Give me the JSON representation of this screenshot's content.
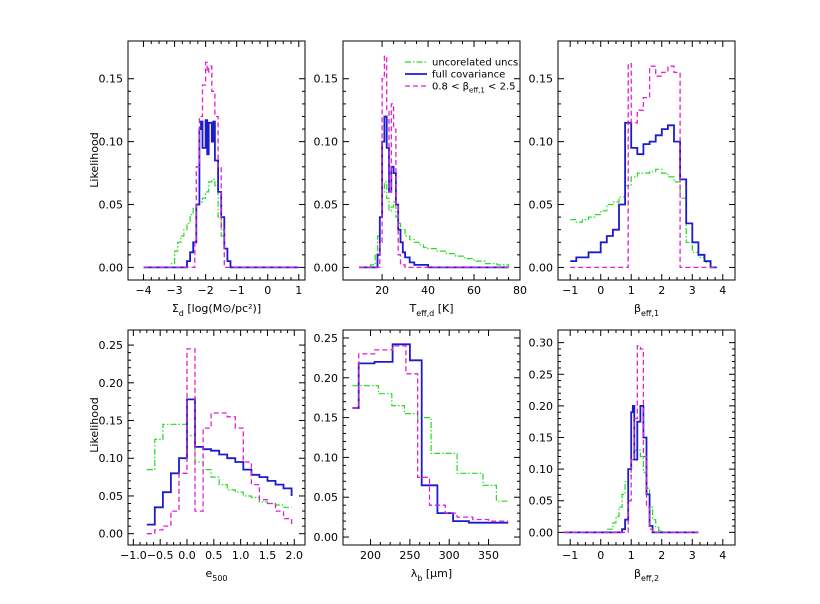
{
  "figure": {
    "ylabel": "Likelihood"
  },
  "series_styles": [
    {
      "key": "uncorr",
      "name": "uncorelated uncs.",
      "color": "#22dd22",
      "dash": "6,2,1.5,2",
      "width": 1.2
    },
    {
      "key": "full",
      "name": "full covariance",
      "color": "#1c1ccc",
      "dash": "",
      "width": 1.8
    },
    {
      "key": "beta",
      "name": "0.8 < β_eff,1 < 2.5",
      "color": "#e020d0",
      "dash": "5,3",
      "width": 1.3
    }
  ],
  "legend": {
    "items": [
      "uncorelated uncs.",
      "full covariance",
      "0.8 < βeff,1 < 2.5"
    ],
    "placement": "top-right of panel 2"
  },
  "chart_data": [
    {
      "type": "line",
      "panel": 1,
      "xlabel": "Σd [log(M⊙/pc²)]",
      "ylabel": "Likelihood",
      "xlim": [
        -4.5,
        1.2
      ],
      "ylim": [
        -0.01,
        0.18
      ],
      "xticks": [
        -4,
        -3,
        -2,
        -1,
        0,
        1
      ],
      "yticks": [
        0.0,
        0.05,
        0.1,
        0.15
      ],
      "tick_format": 2,
      "series": [
        {
          "key": "uncorr",
          "x": [
            -4.0,
            -3.2,
            -3.1,
            -3.0,
            -2.9,
            -2.8,
            -2.7,
            -2.6,
            -2.5,
            -2.4,
            -2.3,
            -2.2,
            -2.1,
            -2.0,
            -1.9,
            -1.8,
            -1.7,
            -1.6,
            -1.5,
            -1.4,
            -1.3,
            -1.2,
            1.0
          ],
          "y": [
            0.0,
            0.0,
            0.003,
            0.013,
            0.02,
            0.025,
            0.03,
            0.035,
            0.042,
            0.047,
            0.05,
            0.052,
            0.055,
            0.06,
            0.068,
            0.07,
            0.065,
            0.04,
            0.025,
            0.015,
            0.005,
            0.0,
            0.0
          ]
        },
        {
          "key": "full",
          "x": [
            -4.0,
            -2.7,
            -2.6,
            -2.5,
            -2.4,
            -2.3,
            -2.2,
            -2.15,
            -2.1,
            -2.0,
            -1.95,
            -1.9,
            -1.8,
            -1.75,
            -1.7,
            -1.6,
            -1.5,
            -1.4,
            -1.3,
            -1.2,
            1.0
          ],
          "y": [
            0.0,
            0.0,
            0.005,
            0.012,
            0.02,
            0.05,
            0.11,
            0.116,
            0.095,
            0.117,
            0.09,
            0.115,
            0.1,
            0.116,
            0.085,
            0.06,
            0.04,
            0.015,
            0.005,
            0.0,
            0.0
          ]
        },
        {
          "key": "beta",
          "x": [
            -4.0,
            -2.4,
            -2.35,
            -2.3,
            -2.2,
            -2.1,
            -2.0,
            -1.95,
            -1.9,
            -1.8,
            -1.7,
            -1.6,
            -1.5,
            -1.4,
            1.0
          ],
          "y": [
            0.0,
            0.0,
            0.02,
            0.08,
            0.12,
            0.145,
            0.163,
            0.155,
            0.16,
            0.14,
            0.12,
            0.08,
            0.03,
            0.0,
            0.0
          ]
        }
      ]
    },
    {
      "type": "line",
      "panel": 2,
      "xlabel": "Teff,d [K]",
      "xlim": [
        3,
        80
      ],
      "ylim": [
        -0.01,
        0.18
      ],
      "xticks": [
        20,
        40,
        60,
        80
      ],
      "yticks": [
        0.0,
        0.05,
        0.1,
        0.15
      ],
      "tick_format": 2,
      "series": [
        {
          "key": "uncorr",
          "x": [
            10,
            15,
            17,
            18,
            19,
            20,
            21,
            22,
            23,
            24,
            25,
            26,
            27,
            28,
            30,
            32,
            34,
            36,
            38,
            40,
            44,
            48,
            52,
            56,
            60,
            65,
            70,
            75
          ],
          "y": [
            0.0,
            0.002,
            0.01,
            0.025,
            0.04,
            0.06,
            0.068,
            0.055,
            0.045,
            0.048,
            0.052,
            0.04,
            0.035,
            0.03,
            0.025,
            0.022,
            0.02,
            0.018,
            0.016,
            0.015,
            0.013,
            0.011,
            0.009,
            0.007,
            0.005,
            0.003,
            0.002,
            0.0
          ]
        },
        {
          "key": "full",
          "x": [
            10,
            17,
            18,
            19,
            20,
            21,
            22,
            23,
            24,
            25,
            26,
            27,
            28,
            29,
            30,
            32,
            34,
            40,
            75
          ],
          "y": [
            0.0,
            0.0,
            0.01,
            0.04,
            0.1,
            0.12,
            0.095,
            0.06,
            0.08,
            0.075,
            0.05,
            0.03,
            0.02,
            0.012,
            0.008,
            0.004,
            0.002,
            0.0,
            0.0
          ]
        },
        {
          "key": "beta",
          "x": [
            10,
            18,
            19,
            20,
            21,
            22,
            23,
            24,
            25,
            26,
            27,
            28,
            30,
            75
          ],
          "y": [
            0.0,
            0.0,
            0.02,
            0.15,
            0.168,
            0.125,
            0.06,
            0.13,
            0.11,
            0.05,
            0.01,
            0.002,
            0.0,
            0.0
          ]
        }
      ]
    },
    {
      "type": "line",
      "panel": 3,
      "xlabel": "βeff,1",
      "xlim": [
        -1.4,
        4.4
      ],
      "ylim": [
        -0.01,
        0.18
      ],
      "xticks": [
        -1,
        0,
        1,
        2,
        3,
        4
      ],
      "yticks": [
        0.0,
        0.05,
        0.1,
        0.15
      ],
      "tick_format": 2,
      "series": [
        {
          "key": "uncorr",
          "x": [
            -1.0,
            -0.8,
            -0.6,
            -0.4,
            -0.2,
            0.0,
            0.2,
            0.4,
            0.6,
            0.8,
            1.0,
            1.2,
            1.4,
            1.6,
            1.8,
            2.0,
            2.2,
            2.4,
            2.6,
            2.8,
            3.0,
            3.2,
            3.4,
            3.6,
            3.8
          ],
          "y": [
            0.038,
            0.036,
            0.038,
            0.04,
            0.042,
            0.045,
            0.05,
            0.052,
            0.056,
            0.065,
            0.072,
            0.075,
            0.075,
            0.076,
            0.078,
            0.075,
            0.072,
            0.068,
            0.055,
            0.02,
            0.012,
            0.008,
            0.004,
            0.0,
            0.0
          ]
        },
        {
          "key": "full",
          "x": [
            -1.0,
            -0.8,
            -0.6,
            -0.4,
            -0.2,
            0.0,
            0.2,
            0.4,
            0.6,
            0.8,
            1.0,
            1.2,
            1.4,
            1.6,
            1.8,
            2.0,
            2.2,
            2.4,
            2.6,
            2.8,
            3.0,
            3.2,
            3.4,
            3.6,
            3.8
          ],
          "y": [
            0.005,
            0.008,
            0.008,
            0.012,
            0.012,
            0.02,
            0.025,
            0.03,
            0.05,
            0.115,
            0.095,
            0.09,
            0.098,
            0.1,
            0.105,
            0.11,
            0.113,
            0.1,
            0.07,
            0.035,
            0.02,
            0.01,
            0.005,
            0.0,
            0.0
          ]
        },
        {
          "key": "beta",
          "x": [
            -1.0,
            0.8,
            0.9,
            1.0,
            1.2,
            1.4,
            1.6,
            1.8,
            2.0,
            2.2,
            2.4,
            2.6,
            2.7,
            3.8
          ],
          "y": [
            0.0,
            0.0,
            0.162,
            0.115,
            0.125,
            0.135,
            0.16,
            0.152,
            0.155,
            0.16,
            0.155,
            0.0,
            0.0,
            0.0
          ]
        }
      ]
    },
    {
      "type": "line",
      "panel": 4,
      "xlabel": "e500",
      "xlim": [
        -1.1,
        2.2
      ],
      "ylim": [
        -0.015,
        0.27
      ],
      "xticks": [
        -1.0,
        -0.5,
        0.0,
        0.5,
        1.0,
        1.5,
        2.0
      ],
      "yticks": [
        0.0,
        0.05,
        0.1,
        0.15,
        0.2,
        0.25
      ],
      "tick_format": 2,
      "xtick_format": 1,
      "series": [
        {
          "key": "uncorr",
          "x": [
            -0.75,
            -0.6,
            -0.45,
            -0.3,
            -0.15,
            0.0,
            0.15,
            0.3,
            0.45,
            0.6,
            0.75,
            0.9,
            1.05,
            1.2,
            1.35,
            1.5,
            1.65,
            1.8,
            1.95
          ],
          "y": [
            0.085,
            0.125,
            0.145,
            0.145,
            0.145,
            0.13,
            0.095,
            0.085,
            0.075,
            0.065,
            0.058,
            0.055,
            0.05,
            0.048,
            0.042,
            0.04,
            0.038,
            0.035,
            0.035
          ]
        },
        {
          "key": "full",
          "x": [
            -0.75,
            -0.6,
            -0.45,
            -0.3,
            -0.15,
            0.0,
            0.15,
            0.3,
            0.45,
            0.6,
            0.75,
            0.9,
            1.05,
            1.2,
            1.35,
            1.5,
            1.65,
            1.8,
            1.95
          ],
          "y": [
            0.012,
            0.035,
            0.055,
            0.08,
            0.1,
            0.178,
            0.115,
            0.112,
            0.11,
            0.105,
            0.1,
            0.095,
            0.085,
            0.078,
            0.075,
            0.07,
            0.065,
            0.06,
            0.05
          ]
        },
        {
          "key": "beta",
          "x": [
            -0.75,
            -0.6,
            -0.45,
            -0.3,
            -0.15,
            0.0,
            0.15,
            0.3,
            0.45,
            0.6,
            0.75,
            0.9,
            1.05,
            1.2,
            1.35,
            1.5,
            1.65,
            1.8,
            1.95
          ],
          "y": [
            0.0,
            0.005,
            0.01,
            0.03,
            0.08,
            0.245,
            0.03,
            0.14,
            0.16,
            0.16,
            0.155,
            0.14,
            0.095,
            0.065,
            0.045,
            0.04,
            0.03,
            0.02,
            0.01
          ]
        }
      ]
    },
    {
      "type": "line",
      "panel": 5,
      "xlabel": "λb [μm]",
      "xlim": [
        165,
        390
      ],
      "ylim": [
        -0.01,
        0.26
      ],
      "xticks": [
        200,
        250,
        300,
        350
      ],
      "yticks": [
        0.0,
        0.05,
        0.1,
        0.15,
        0.2,
        0.25
      ],
      "tick_format": 2,
      "xtick_format": 0,
      "series": [
        {
          "key": "uncorr",
          "x": [
            177,
            193,
            210,
            227,
            243,
            260,
            277,
            293,
            310,
            327,
            343,
            360,
            375
          ],
          "y": [
            0.19,
            0.19,
            0.18,
            0.165,
            0.155,
            0.15,
            0.105,
            0.105,
            0.08,
            0.08,
            0.065,
            0.045,
            0.045
          ]
        },
        {
          "key": "full",
          "x": [
            177,
            185,
            205,
            228,
            250,
            265,
            285,
            305,
            325,
            345,
            360,
            375
          ],
          "y": [
            0.162,
            0.218,
            0.22,
            0.242,
            0.222,
            0.065,
            0.03,
            0.02,
            0.018,
            0.018,
            0.018,
            0.018
          ]
        },
        {
          "key": "beta",
          "x": [
            177,
            185,
            205,
            228,
            245,
            260,
            275,
            295,
            310,
            330,
            350,
            375
          ],
          "y": [
            0.162,
            0.23,
            0.235,
            0.24,
            0.205,
            0.075,
            0.04,
            0.03,
            0.025,
            0.022,
            0.02,
            0.02
          ]
        }
      ]
    },
    {
      "type": "line",
      "panel": 6,
      "xlabel": "βeff,2",
      "xlim": [
        -1.4,
        4.4
      ],
      "ylim": [
        -0.02,
        0.32
      ],
      "xticks": [
        -1,
        0,
        1,
        2,
        3,
        4
      ],
      "yticks": [
        0.0,
        0.05,
        0.1,
        0.15,
        0.2,
        0.25,
        0.3
      ],
      "tick_format": 2,
      "series": [
        {
          "key": "uncorr",
          "x": [
            -1.2,
            0.0,
            0.2,
            0.4,
            0.5,
            0.6,
            0.7,
            0.8,
            0.9,
            1.0,
            1.1,
            1.2,
            1.3,
            1.4,
            1.5,
            1.6,
            1.7,
            1.8,
            1.9,
            2.0,
            2.2,
            3.2
          ],
          "y": [
            0.0,
            0.0,
            0.005,
            0.015,
            0.025,
            0.04,
            0.06,
            0.08,
            0.09,
            0.115,
            0.13,
            0.13,
            0.12,
            0.095,
            0.07,
            0.04,
            0.02,
            0.008,
            0.003,
            0.0,
            0.0,
            0.0
          ]
        },
        {
          "key": "full",
          "x": [
            -1.2,
            0.6,
            0.7,
            0.8,
            0.9,
            1.0,
            1.05,
            1.1,
            1.2,
            1.3,
            1.4,
            1.5,
            1.6,
            1.7,
            3.2
          ],
          "y": [
            0.0,
            0.0,
            0.005,
            0.02,
            0.1,
            0.19,
            0.2,
            0.115,
            0.175,
            0.2,
            0.15,
            0.06,
            0.01,
            0.0,
            0.0
          ]
        },
        {
          "key": "beta",
          "x": [
            -1.2,
            0.8,
            0.9,
            1.0,
            1.1,
            1.2,
            1.3,
            1.4,
            1.5,
            1.6,
            1.7,
            3.2
          ],
          "y": [
            0.0,
            0.0,
            0.05,
            0.115,
            0.18,
            0.295,
            0.29,
            0.12,
            0.04,
            0.005,
            0.0,
            0.0
          ]
        }
      ]
    }
  ]
}
